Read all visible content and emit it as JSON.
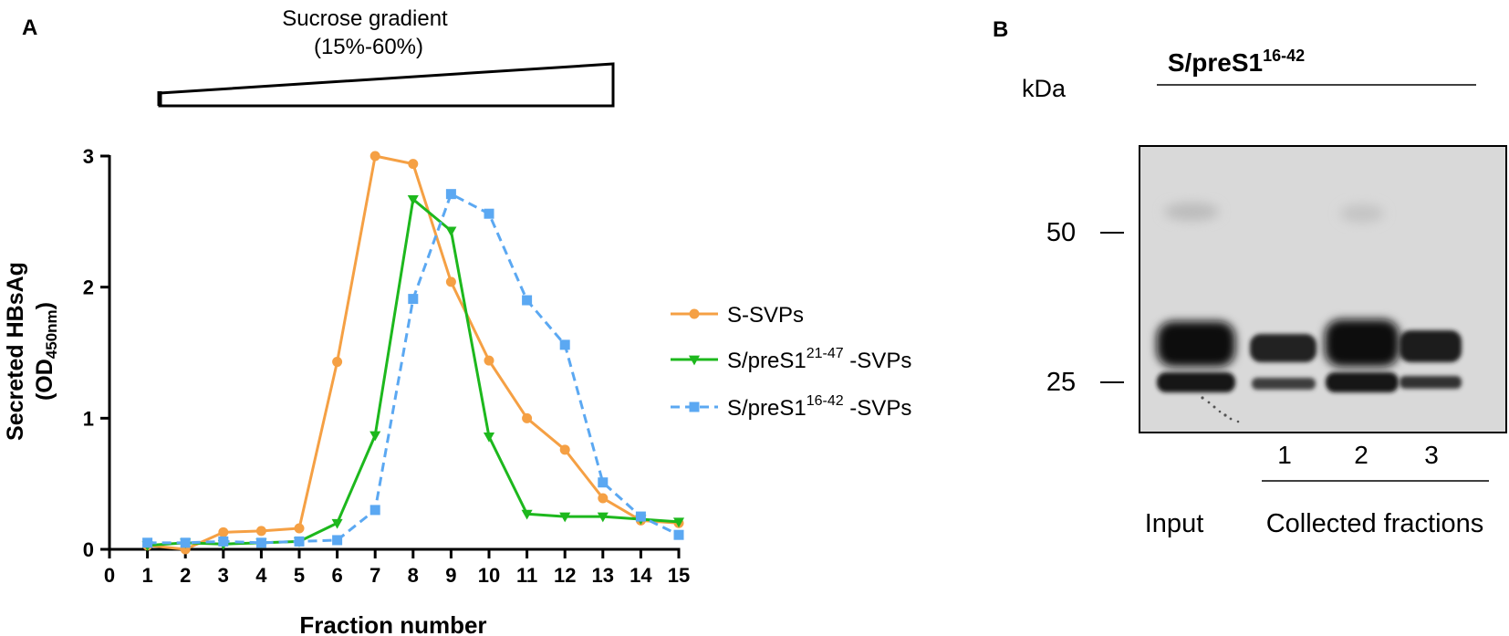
{
  "panel_a": {
    "label": "A",
    "gradient": {
      "title_line1": "Sucrose gradient",
      "title_line2": "(15%-60%)"
    }
  },
  "panel_b": {
    "label": "B",
    "title_main": "S/preS1",
    "title_sup": "16-42",
    "kda_label": "kDa",
    "markers": [
      "50",
      "25"
    ],
    "lane_numbers": [
      "1",
      "2",
      "3"
    ],
    "input_label": "Input",
    "fractions_label": "Collected fractions",
    "blot_bands": [
      {
        "lane": "Input",
        "upper_band_relative": 0.95,
        "lower_band_relative": 0.9
      },
      {
        "lane": "1",
        "upper_band_relative": 0.6,
        "lower_band_relative": 0.45
      },
      {
        "lane": "2",
        "upper_band_relative": 1.0,
        "lower_band_relative": 0.95
      },
      {
        "lane": "3",
        "upper_band_relative": 0.65,
        "lower_band_relative": 0.55
      }
    ]
  },
  "chart_data": {
    "type": "line",
    "title": "",
    "xlabel": "Fraction number",
    "ylabel_main": "Secreted HBsAg",
    "ylabel_unit_prefix": "(OD",
    "ylabel_unit_sub": "450nm",
    "ylabel_unit_suffix": ")",
    "xlim": [
      0,
      15
    ],
    "ylim": [
      0,
      3
    ],
    "x_ticks": [
      0,
      1,
      2,
      3,
      4,
      5,
      6,
      7,
      8,
      9,
      10,
      11,
      12,
      13,
      14,
      15
    ],
    "y_ticks": [
      0,
      1,
      2,
      3
    ],
    "grid": false,
    "legend_position": "right",
    "x": [
      1,
      2,
      3,
      4,
      5,
      6,
      7,
      8,
      9,
      10,
      11,
      12,
      13,
      14,
      15
    ],
    "series": [
      {
        "name": "S-SVPs",
        "name_main": "S-SVPs",
        "name_sup": "",
        "name_suffix": "",
        "color": "#F5A044",
        "marker": "circle",
        "dash": false,
        "values": [
          0.03,
          0.0,
          0.13,
          0.14,
          0.16,
          1.43,
          3.0,
          2.94,
          2.04,
          1.44,
          1.0,
          0.76,
          0.39,
          0.22,
          0.2
        ]
      },
      {
        "name": "S/preS1 21-47 -SVPs",
        "name_main": "S/preS1",
        "name_sup": "21-47",
        "name_suffix": " -SVPs",
        "color": "#1DB81D",
        "marker": "triangle-down",
        "dash": false,
        "values": [
          0.03,
          0.05,
          0.04,
          0.05,
          0.06,
          0.2,
          0.87,
          2.67,
          2.43,
          0.86,
          0.27,
          0.25,
          0.25,
          0.23,
          0.21
        ]
      },
      {
        "name": "S/preS1 16-42 -SVPs",
        "name_main": "S/preS1",
        "name_sup": "16-42",
        "name_suffix": " -SVPs",
        "color": "#5BA8F2",
        "marker": "square",
        "dash": true,
        "values": [
          0.05,
          0.05,
          0.06,
          0.05,
          0.06,
          0.07,
          0.3,
          1.91,
          2.71,
          2.56,
          1.9,
          1.56,
          0.51,
          0.25,
          0.11
        ]
      }
    ]
  }
}
